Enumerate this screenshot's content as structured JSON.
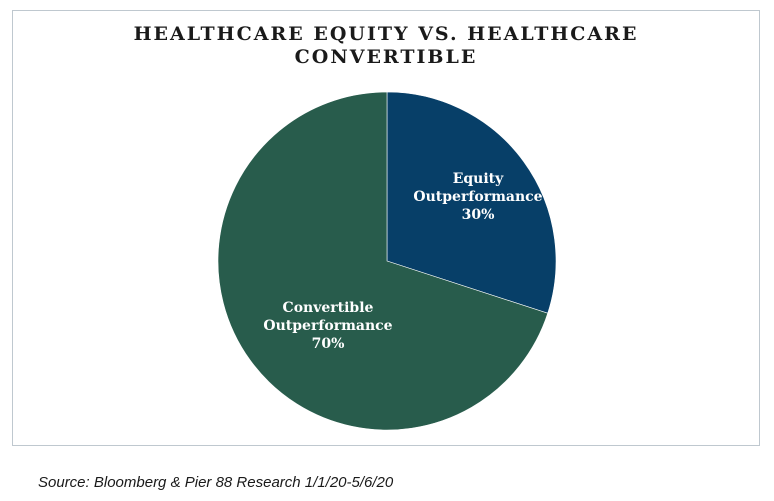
{
  "chart_data": {
    "type": "pie",
    "title_lines": [
      "HEALTHCARE EQUITY VS. HEALTHCARE",
      "CONVERTIBLE"
    ],
    "slices": [
      {
        "label_lines": [
          "Equity",
          "Outperformance",
          "30%"
        ],
        "value": 30,
        "color": "#073f68"
      },
      {
        "label_lines": [
          "Convertible",
          "Outperformance",
          "70%"
        ],
        "value": 70,
        "color": "#285c4c"
      }
    ],
    "start_angle_deg": 0,
    "direction": "clockwise"
  },
  "source": "Source: Bloomberg & Pier 88 Research 1/1/20-5/6/20"
}
